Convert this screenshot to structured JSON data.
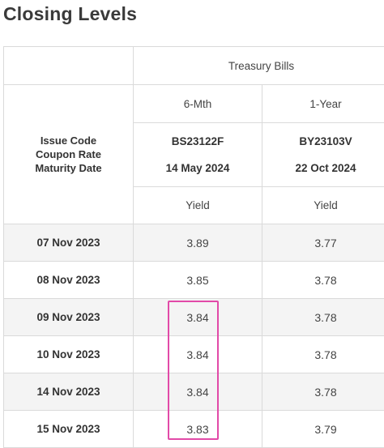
{
  "title": "Closing Levels",
  "group_header": "Treasury Bills",
  "issue_header_lines": [
    "Issue Code",
    "Coupon Rate",
    "Maturity Date"
  ],
  "columns": [
    {
      "tenor": "6-Mth",
      "code": "BS23122F",
      "maturity": "14 May 2024",
      "measure": "Yield"
    },
    {
      "tenor": "1-Year",
      "code": "BY23103V",
      "maturity": "22 Oct 2024",
      "measure": "Yield"
    }
  ],
  "rows": [
    {
      "date": "07 Nov 2023",
      "values": [
        "3.89",
        "3.77"
      ]
    },
    {
      "date": "08 Nov 2023",
      "values": [
        "3.85",
        "3.78"
      ]
    },
    {
      "date": "09 Nov 2023",
      "values": [
        "3.84",
        "3.78"
      ]
    },
    {
      "date": "10 Nov 2023",
      "values": [
        "3.84",
        "3.78"
      ]
    },
    {
      "date": "14 Nov 2023",
      "values": [
        "3.84",
        "3.78"
      ]
    },
    {
      "date": "15 Nov 2023",
      "values": [
        "3.83",
        "3.79"
      ]
    }
  ],
  "colors": {
    "highlight_border": "#e24aa8",
    "row_shade": "#f4f4f4",
    "grid_line": "#dadada"
  }
}
